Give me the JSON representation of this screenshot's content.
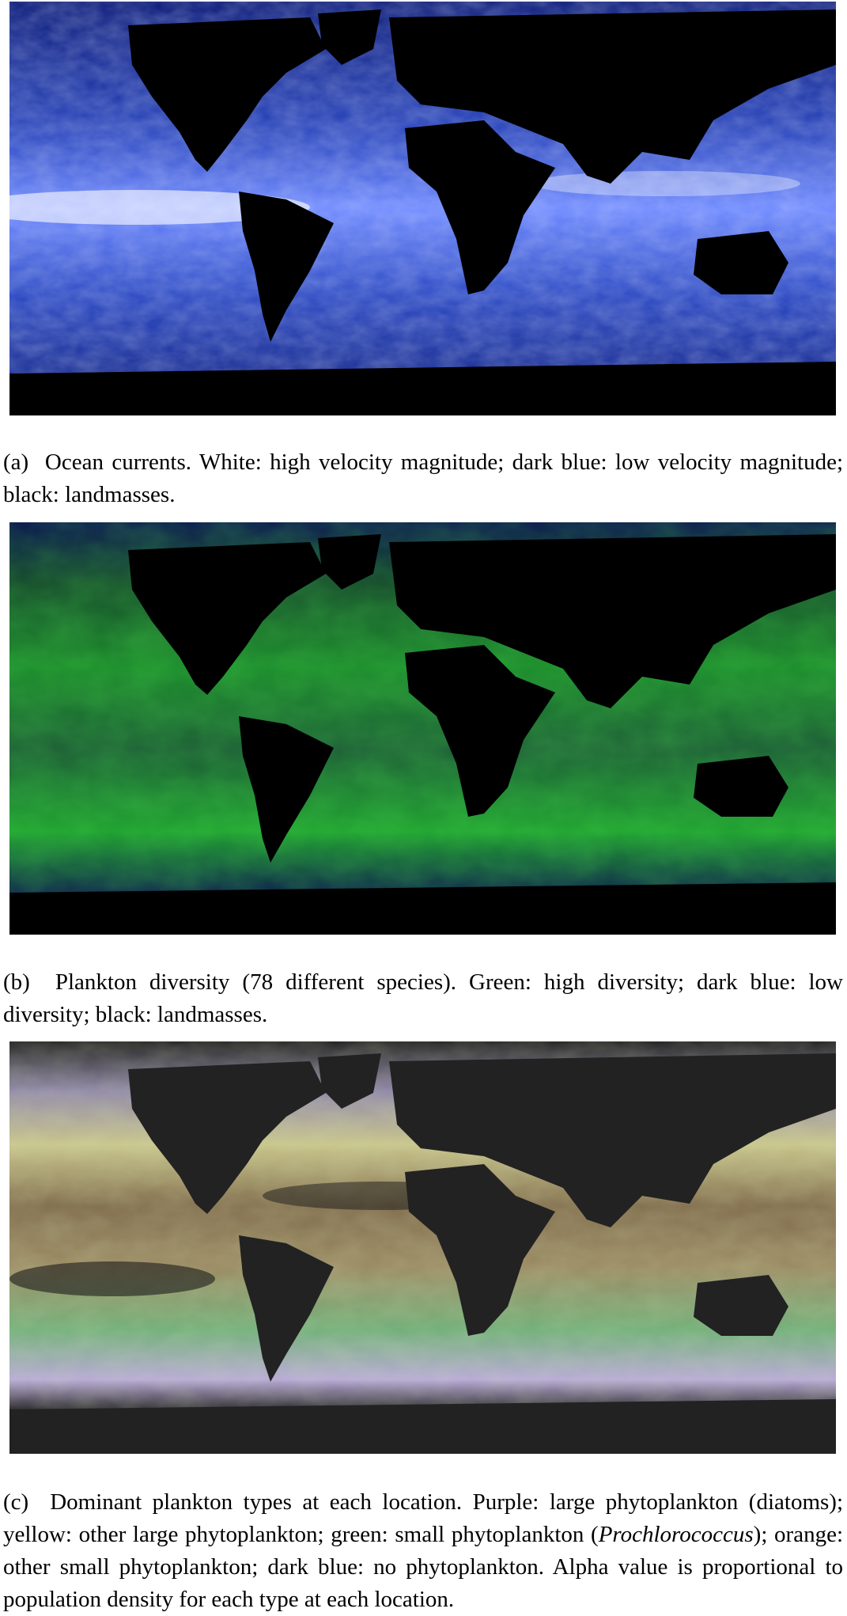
{
  "figures": [
    {
      "id": "a",
      "caption": {
        "label": "(a)",
        "text": "Ocean currents. White: high velocity magnitude; dark blue: low velocity magnitude; black: landmasses."
      },
      "colors": {
        "land": "#000000",
        "low": "#0a1a78",
        "mid": "#3f5fe0",
        "high": "#ffffff"
      }
    },
    {
      "id": "b",
      "caption": {
        "label": "(b)",
        "text": "Plankton diversity (78 different species). Green: high diversity; dark blue: low diversity; black: landmasses."
      },
      "colors": {
        "land": "#000000",
        "low": "#0a1450",
        "mid": "#1f5a2a",
        "high": "#22d022"
      }
    },
    {
      "id": "c",
      "caption": {
        "label": "(c)",
        "text_before_italic": "Dominant plankton types at each location. Purple: large phytoplankton (diatoms); yellow: other large phytoplankton; green: small phytoplankton (",
        "italic": "Prochlorococcus",
        "text_after_italic": "); orange: other small phytoplankton; dark blue: no phytoplankton. Alpha value is proportional to population density for each type at each location."
      },
      "colors": {
        "land": "#222222",
        "purple": "#b8a8d8",
        "yellow": "#d8d090",
        "green": "#7fc08a",
        "orange": "#9a7a55",
        "dark": "#1a1a1a"
      }
    }
  ]
}
